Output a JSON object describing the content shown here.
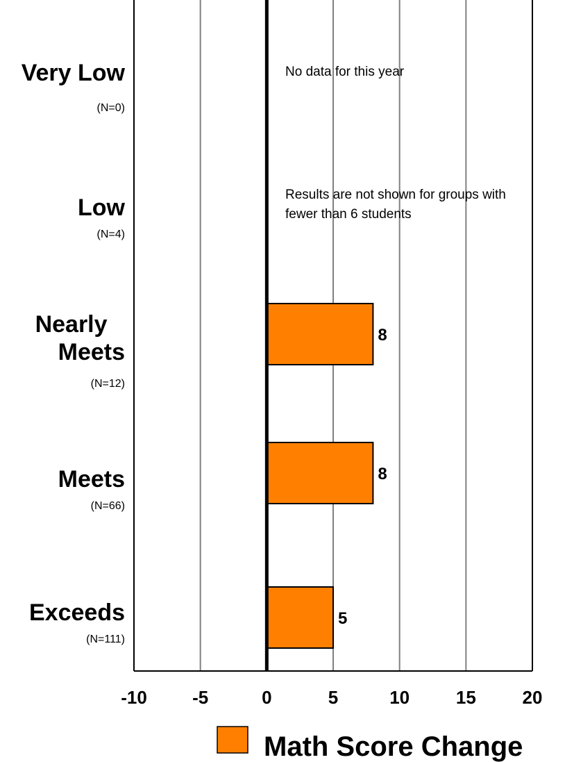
{
  "chart_data": {
    "type": "bar",
    "orientation": "horizontal",
    "categories": [
      "Very Low",
      "Low",
      "Nearly Meets",
      "Meets",
      "Exceeds"
    ],
    "category_counts": [
      "(N=0)",
      "(N=4)",
      "(N=12)",
      "(N=66)",
      "(N=111)"
    ],
    "series": [
      {
        "name": "Math Score Change",
        "values": [
          null,
          null,
          8,
          8,
          5
        ],
        "color": "#ff8000"
      }
    ],
    "data_labels": [
      "",
      "",
      "8",
      "8",
      "5"
    ],
    "annotations": [
      "No data for this year",
      "Results are not shown for groups with fewer than 6 students"
    ],
    "xlim": [
      -10,
      20
    ],
    "xticks": [
      "-10",
      "-5",
      "0",
      "5",
      "10",
      "15",
      "20"
    ],
    "grid": true,
    "legend": "bottom",
    "bar_edge_color": "#000000"
  }
}
